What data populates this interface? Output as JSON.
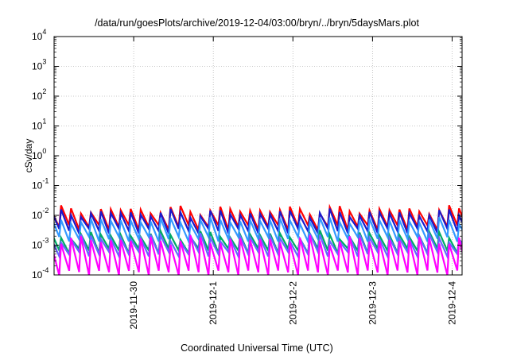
{
  "chart_data": {
    "type": "line",
    "title": "/data/run/goesPlots/archive/2019-12-04/03:00/bryn/../bryn/5daysMars.plot",
    "xlabel": "Coordinated Universal Time (UTC)",
    "ylabel": "cSv/day",
    "y_scale": "log",
    "ylim": [
      0.0001,
      10000
    ],
    "xlim": [
      "2019-11-29T00:00",
      "2019-12-04T03:00"
    ],
    "x_ticks": [
      "2019-11-30",
      "2019-12-1",
      "2019-12-2",
      "2019-12-3",
      "2019-12-4"
    ],
    "x_tick_dates": [
      "2019-11-30T00:00",
      "2019-12-01T00:00",
      "2019-12-02T00:00",
      "2019-12-03T00:00",
      "2019-12-04T00:00"
    ],
    "y_ticks": [
      {
        "base": "10",
        "exp": "4",
        "value": 10000
      },
      {
        "base": "10",
        "exp": "3",
        "value": 1000
      },
      {
        "base": "10",
        "exp": "2",
        "value": 100
      },
      {
        "base": "10",
        "exp": "1",
        "value": 10
      },
      {
        "base": "10",
        "exp": "0",
        "value": 1
      },
      {
        "base": "10",
        "exp": "-1",
        "value": 0.1
      },
      {
        "base": "10",
        "exp": "-2",
        "value": 0.01
      },
      {
        "base": "10",
        "exp": "-3",
        "value": 0.001
      },
      {
        "base": "10",
        "exp": "-4",
        "value": 0.0001
      }
    ],
    "grid": true,
    "legend": "none",
    "series": [
      {
        "color": "#ff0000",
        "peak_range": [
          0.01,
          0.022
        ],
        "trough": 0.004
      },
      {
        "color": "#1a1acc",
        "peak_range": [
          0.008,
          0.017
        ],
        "trough": 0.003
      },
      {
        "color": "#3399ff",
        "peak_range": [
          0.005,
          0.009
        ],
        "trough": 0.0016
      },
      {
        "color": "#00aa66",
        "peak_range": [
          0.0015,
          0.0032
        ],
        "trough": 0.00065
      },
      {
        "color": "#6666ff",
        "peak_range": [
          0.0012,
          0.0026
        ],
        "trough": 0.0005
      },
      {
        "color": "#ff00ff",
        "peak_range": [
          0.001,
          0.0022
        ],
        "trough": 0.00012
      }
    ],
    "sawtooth_period_hours": 3
  }
}
